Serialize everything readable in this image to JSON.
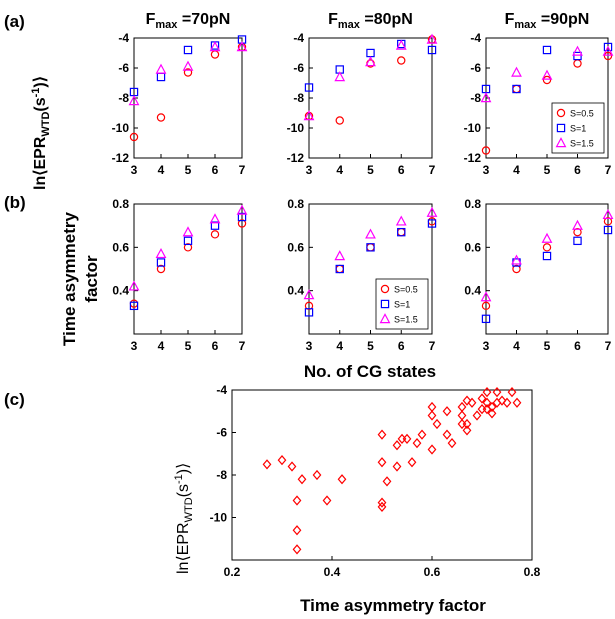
{
  "panel_labels": [
    "(a)",
    "(b)",
    "(c)"
  ],
  "row_a_ylabel": "ln⟨EPR",
  "row_a_ylabel_sub": "WTD",
  "row_a_ylabel_tail": "(s",
  "row_a_ylabel_sup": "-1",
  "row_a_ylabel_end": ")⟩",
  "row_b_ylabel_line1": "Time asymmetry",
  "row_b_ylabel_line2": "factor",
  "shared_xlabel": "No. of CG states",
  "c_xlabel": "Time asymmetry factor",
  "legend": [
    "S=0.5",
    "S=1",
    "S=1.5"
  ],
  "colors": {
    "s05": "#ff0000",
    "s1": "#0000ff",
    "s15": "#ff00ff",
    "c": "#ff0000"
  },
  "markers": {
    "s05": "circle",
    "s1": "square",
    "s15": "triangle",
    "c": "diamond"
  },
  "chart_data": [
    {
      "type": "scatter",
      "panel": "a",
      "title": "F",
      "title_sub": "max",
      "title_rest": " =70pN",
      "x": [
        3,
        4,
        5,
        6,
        7
      ],
      "xlim": [
        3,
        7
      ],
      "ylim": [
        -12,
        -4
      ],
      "xticks": [
        "3",
        "4",
        "5",
        "6",
        "7"
      ],
      "yticks": [
        "-12",
        "-10",
        "-8",
        "-6",
        "-4"
      ],
      "series": [
        {
          "name": "S=0.5",
          "values": [
            -10.6,
            -9.3,
            -6.3,
            -5.1,
            -4.6
          ]
        },
        {
          "name": "S=1",
          "values": [
            -7.6,
            -6.6,
            -4.8,
            -4.5,
            -4.1
          ]
        },
        {
          "name": "S=1.5",
          "values": [
            -8.2,
            -6.1,
            -5.9,
            -4.6,
            -4.6
          ]
        }
      ]
    },
    {
      "type": "scatter",
      "panel": "a",
      "title": "F",
      "title_sub": "max",
      "title_rest": " =80pN",
      "x": [
        3,
        4,
        5,
        6,
        7
      ],
      "xlim": [
        3,
        7
      ],
      "ylim": [
        -12,
        -4
      ],
      "xticks": [
        "3",
        "4",
        "5",
        "6",
        "7"
      ],
      "yticks": [
        "-12",
        "-10",
        "-8",
        "-6",
        "-4"
      ],
      "series": [
        {
          "name": "S=0.5",
          "values": [
            -9.2,
            -9.5,
            -5.7,
            -5.5,
            -4.1
          ]
        },
        {
          "name": "S=1",
          "values": [
            -7.3,
            -6.1,
            -5.0,
            -4.4,
            -4.8
          ]
        },
        {
          "name": "S=1.5",
          "values": [
            -9.2,
            -6.6,
            -5.6,
            -4.5,
            -4.1
          ]
        }
      ]
    },
    {
      "type": "scatter",
      "panel": "a",
      "title": "F",
      "title_sub": "max",
      "title_rest": " =90pN",
      "x": [
        3,
        4,
        5,
        6,
        7
      ],
      "xlim": [
        3,
        7
      ],
      "ylim": [
        -12,
        -4
      ],
      "xticks": [
        "3",
        "4",
        "5",
        "6",
        "7"
      ],
      "yticks": [
        "-12",
        "-10",
        "-8",
        "-6",
        "-4"
      ],
      "legend": "bottom-right",
      "series": [
        {
          "name": "S=0.5",
          "values": [
            -11.5,
            -7.4,
            -6.8,
            -5.7,
            -5.2
          ]
        },
        {
          "name": "S=1",
          "values": [
            -7.4,
            -7.4,
            -4.8,
            -5.2,
            -4.6
          ]
        },
        {
          "name": "S=1.5",
          "values": [
            -8.0,
            -6.3,
            -6.5,
            -4.9,
            -4.9
          ]
        }
      ]
    },
    {
      "type": "scatter",
      "panel": "b",
      "x": [
        3,
        4,
        5,
        6,
        7
      ],
      "xlim": [
        3,
        7
      ],
      "ylim": [
        0.2,
        0.8
      ],
      "xticks": [
        "3",
        "4",
        "5",
        "6",
        "7"
      ],
      "yticks": [
        "0.4",
        "0.6",
        "0.8"
      ],
      "series": [
        {
          "name": "S=0.5",
          "values": [
            0.34,
            0.5,
            0.6,
            0.66,
            0.71
          ]
        },
        {
          "name": "S=1",
          "values": [
            0.33,
            0.53,
            0.63,
            0.7,
            0.74
          ]
        },
        {
          "name": "S=1.5",
          "values": [
            0.42,
            0.57,
            0.67,
            0.73,
            0.77
          ]
        }
      ]
    },
    {
      "type": "scatter",
      "panel": "b",
      "x": [
        3,
        4,
        5,
        6,
        7
      ],
      "xlim": [
        3,
        7
      ],
      "ylim": [
        0.2,
        0.8
      ],
      "xticks": [
        "3",
        "4",
        "5",
        "6",
        "7"
      ],
      "yticks": [
        "0.4",
        "0.6",
        "0.8"
      ],
      "legend": "bottom-right",
      "series": [
        {
          "name": "S=0.5",
          "values": [
            0.33,
            0.5,
            0.6,
            0.67,
            0.72
          ]
        },
        {
          "name": "S=1",
          "values": [
            0.3,
            0.5,
            0.6,
            0.67,
            0.71
          ]
        },
        {
          "name": "S=1.5",
          "values": [
            0.38,
            0.56,
            0.66,
            0.72,
            0.76
          ]
        }
      ]
    },
    {
      "type": "scatter",
      "panel": "b",
      "x": [
        3,
        4,
        5,
        6,
        7
      ],
      "xlim": [
        3,
        7
      ],
      "ylim": [
        0.2,
        0.8
      ],
      "xticks": [
        "3",
        "4",
        "5",
        "6",
        "7"
      ],
      "yticks": [
        "0.4",
        "0.6",
        "0.8"
      ],
      "series": [
        {
          "name": "S=0.5",
          "values": [
            0.33,
            0.5,
            0.6,
            0.67,
            0.72
          ]
        },
        {
          "name": "S=1",
          "values": [
            0.27,
            0.53,
            0.56,
            0.63,
            0.68
          ]
        },
        {
          "name": "S=1.5",
          "values": [
            0.37,
            0.54,
            0.64,
            0.7,
            0.75
          ]
        }
      ]
    },
    {
      "type": "scatter",
      "panel": "c",
      "xlim": [
        0.2,
        0.8
      ],
      "ylim": [
        -12,
        -4
      ],
      "xticks": [
        "0.2",
        "0.4",
        "0.6",
        "0.8"
      ],
      "yticks": [
        "-10",
        "-8",
        "-6",
        "-4"
      ],
      "points": [
        [
          0.27,
          -7.5
        ],
        [
          0.3,
          -7.3
        ],
        [
          0.32,
          -7.6
        ],
        [
          0.33,
          -9.2
        ],
        [
          0.33,
          -10.6
        ],
        [
          0.33,
          -11.5
        ],
        [
          0.34,
          -8.2
        ],
        [
          0.37,
          -8.0
        ],
        [
          0.39,
          -9.2
        ],
        [
          0.42,
          -8.2
        ],
        [
          0.5,
          -9.3
        ],
        [
          0.5,
          -9.5
        ],
        [
          0.5,
          -6.1
        ],
        [
          0.5,
          -7.4
        ],
        [
          0.51,
          -8.3
        ],
        [
          0.53,
          -6.6
        ],
        [
          0.53,
          -7.6
        ],
        [
          0.54,
          -6.3
        ],
        [
          0.55,
          -6.3
        ],
        [
          0.56,
          -7.4
        ],
        [
          0.57,
          -6.5
        ],
        [
          0.58,
          -6.1
        ],
        [
          0.6,
          -6.8
        ],
        [
          0.6,
          -5.2
        ],
        [
          0.6,
          -4.8
        ],
        [
          0.61,
          -5.6
        ],
        [
          0.63,
          -5.0
        ],
        [
          0.63,
          -6.1
        ],
        [
          0.64,
          -6.5
        ],
        [
          0.66,
          -5.6
        ],
        [
          0.66,
          -5.2
        ],
        [
          0.67,
          -5.6
        ],
        [
          0.67,
          -4.5
        ],
        [
          0.67,
          -5.9
        ],
        [
          0.68,
          -4.6
        ],
        [
          0.69,
          -5.2
        ],
        [
          0.7,
          -4.9
        ],
        [
          0.71,
          -4.6
        ],
        [
          0.71,
          -4.1
        ],
        [
          0.72,
          -4.8
        ],
        [
          0.72,
          -5.1
        ],
        [
          0.73,
          -4.6
        ],
        [
          0.73,
          -4.1
        ],
        [
          0.74,
          -4.5
        ],
        [
          0.75,
          -4.6
        ],
        [
          0.76,
          -4.1
        ],
        [
          0.77,
          -4.6
        ],
        [
          0.66,
          -4.8
        ],
        [
          0.7,
          -4.4
        ],
        [
          0.71,
          -4.9
        ]
      ]
    }
  ]
}
